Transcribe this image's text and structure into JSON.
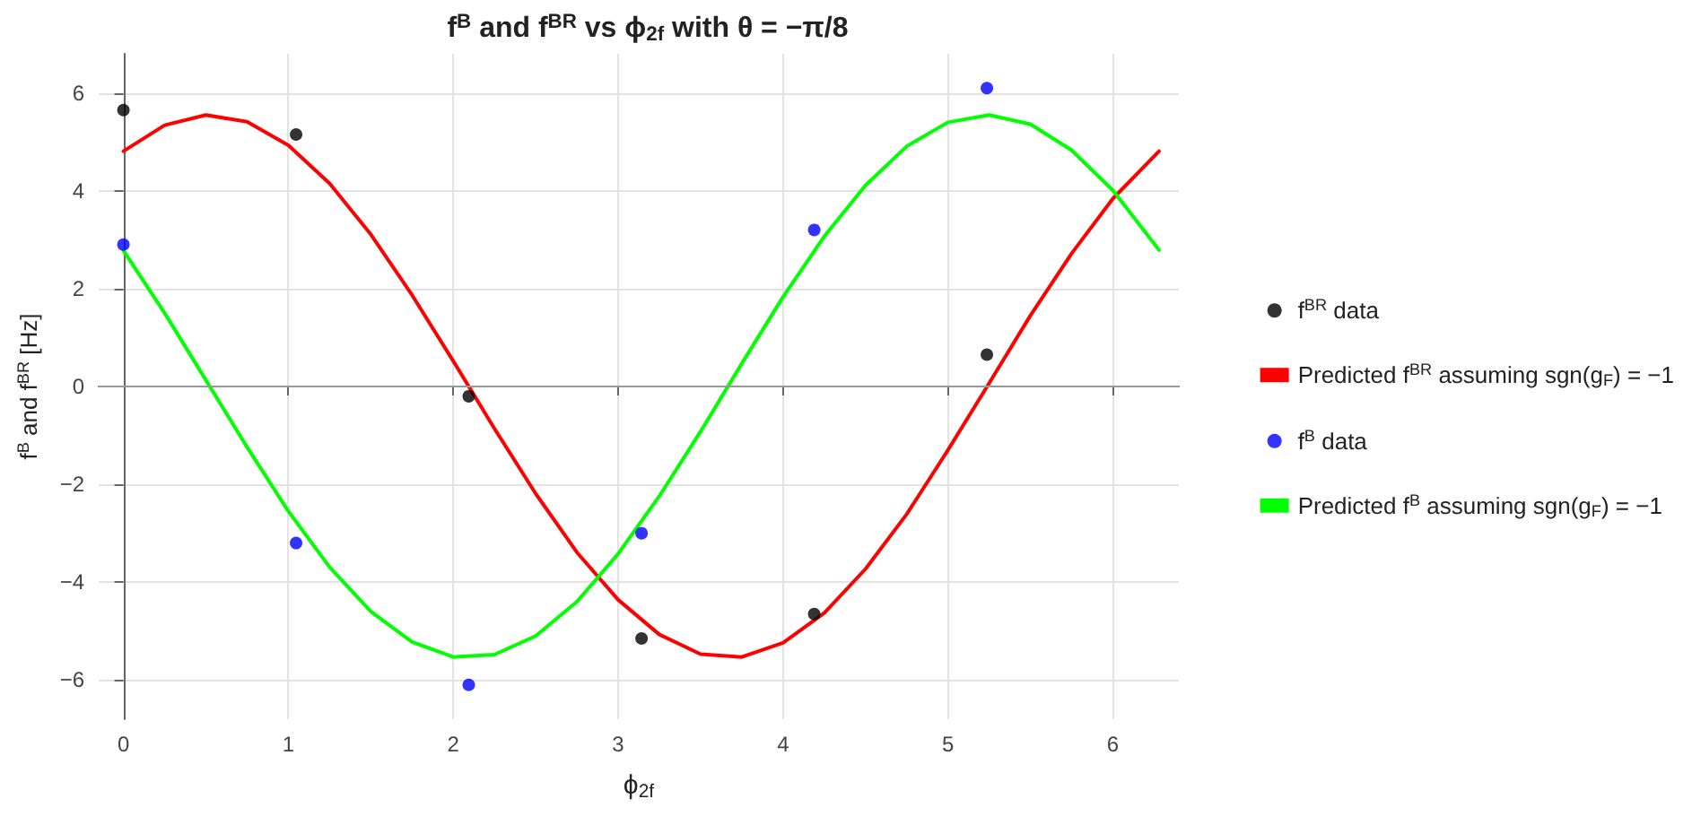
{
  "chart_data": {
    "type": "line",
    "title": "f$^{B}$ and f$^{BR}$ vs ϕ$_{2f}$ with θ = −π/8",
    "xlabel": "ϕ$_{2f}$",
    "ylabel": "f$^{B}$ and f$^{BR}$ [Hz]",
    "xlim": [
      -0.15,
      6.4
    ],
    "ylim": [
      -6.8,
      6.8
    ],
    "xticks": [
      0,
      1,
      2,
      3,
      4,
      5,
      6
    ],
    "yticks": [
      -6,
      -4,
      -2,
      0,
      2,
      4,
      6
    ],
    "grid": true,
    "legend": "right",
    "ref_lines": [
      {
        "axis": "y",
        "value": 0,
        "color": "#999999"
      }
    ],
    "series": [
      {
        "name": "f$^{BR}$ data",
        "type": "scatter",
        "marker": "circle",
        "color": "#000000",
        "x": [
          0,
          1.047,
          2.094,
          3.142,
          4.189,
          5.236
        ],
        "values": [
          5.65,
          5.15,
          -0.2,
          -5.15,
          -4.65,
          0.65
        ]
      },
      {
        "name": "Predicted f$^{BR}$ assuming sgn(g$_{F}$) = −1",
        "type": "line",
        "marker": "none",
        "color": "#ff0000",
        "x": [
          0,
          0.25,
          0.5,
          0.75,
          1.0,
          1.25,
          1.5,
          1.75,
          2.0,
          2.25,
          2.5,
          2.75,
          3.0,
          3.25,
          3.5,
          3.75,
          4.0,
          4.25,
          4.5,
          4.75,
          5.0,
          5.25,
          5.5,
          5.75,
          6.0,
          6.28
        ],
        "values": [
          4.81,
          5.34,
          5.55,
          5.41,
          4.93,
          4.15,
          3.11,
          1.87,
          0.52,
          -0.86,
          -2.19,
          -3.39,
          -4.36,
          -5.07,
          -5.47,
          -5.53,
          -5.24,
          -4.63,
          -3.73,
          -2.61,
          -1.3,
          0.07,
          1.45,
          2.72,
          3.84,
          4.81
        ]
      },
      {
        "name": "f$^{B}$ data",
        "type": "scatter",
        "marker": "circle",
        "color": "#0000ff",
        "x": [
          0,
          1.047,
          2.094,
          3.142,
          4.189,
          5.236
        ],
        "values": [
          2.9,
          -3.2,
          -6.1,
          -3.0,
          3.2,
          6.1
        ]
      },
      {
        "name": "Predicted f$^{B}$ assuming sgn(g$_{F}$) = −1",
        "type": "line",
        "marker": "none",
        "color": "#00ff00",
        "x": [
          0,
          0.25,
          0.5,
          0.75,
          1.0,
          1.25,
          1.5,
          1.75,
          2.0,
          2.25,
          2.5,
          2.75,
          3.0,
          3.25,
          3.5,
          3.75,
          4.0,
          4.25,
          4.5,
          4.75,
          5.0,
          5.25,
          5.5,
          5.75,
          6.0,
          6.28
        ],
        "values": [
          2.78,
          1.5,
          0.13,
          -1.24,
          -2.55,
          -3.69,
          -4.6,
          -5.22,
          -5.53,
          -5.48,
          -5.1,
          -4.4,
          -3.42,
          -2.24,
          -0.92,
          0.47,
          1.83,
          3.07,
          4.11,
          4.91,
          5.4,
          5.55,
          5.36,
          4.83,
          4.01,
          2.79
        ]
      }
    ]
  }
}
